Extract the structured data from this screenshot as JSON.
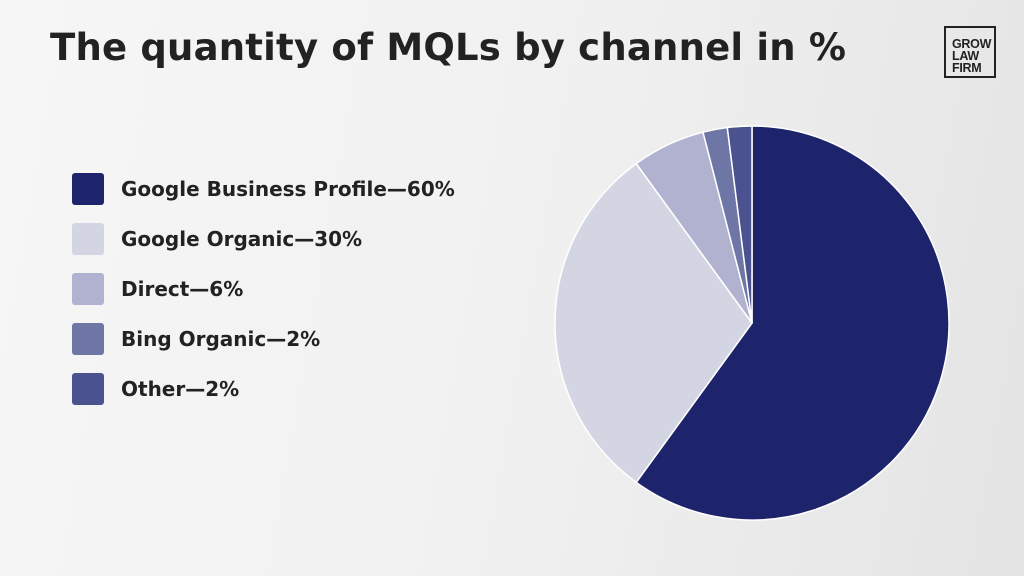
{
  "chart_data": {
    "type": "pie",
    "title": "The quantity of MQLs by channel in %",
    "legend_position": "left",
    "slices": [
      {
        "name": "Google Business Profile",
        "value": 60,
        "label": "Google Business Profile—60%",
        "color": "#1e246b"
      },
      {
        "name": "Google Organic",
        "value": 30,
        "label": "Google Organic—30%",
        "color": "#d3d5e3"
      },
      {
        "name": "Direct",
        "value": 6,
        "label": "Direct—6%",
        "color": "#b0b2cf"
      },
      {
        "name": "Bing Organic",
        "value": 2,
        "label": "Bing Organic—2%",
        "color": "#6e76a6"
      },
      {
        "name": "Other",
        "value": 2,
        "label": "Other—2%",
        "color": "#4a5290"
      }
    ]
  },
  "logo": {
    "lines": [
      "GROW",
      "LAW",
      "FIRM"
    ]
  }
}
